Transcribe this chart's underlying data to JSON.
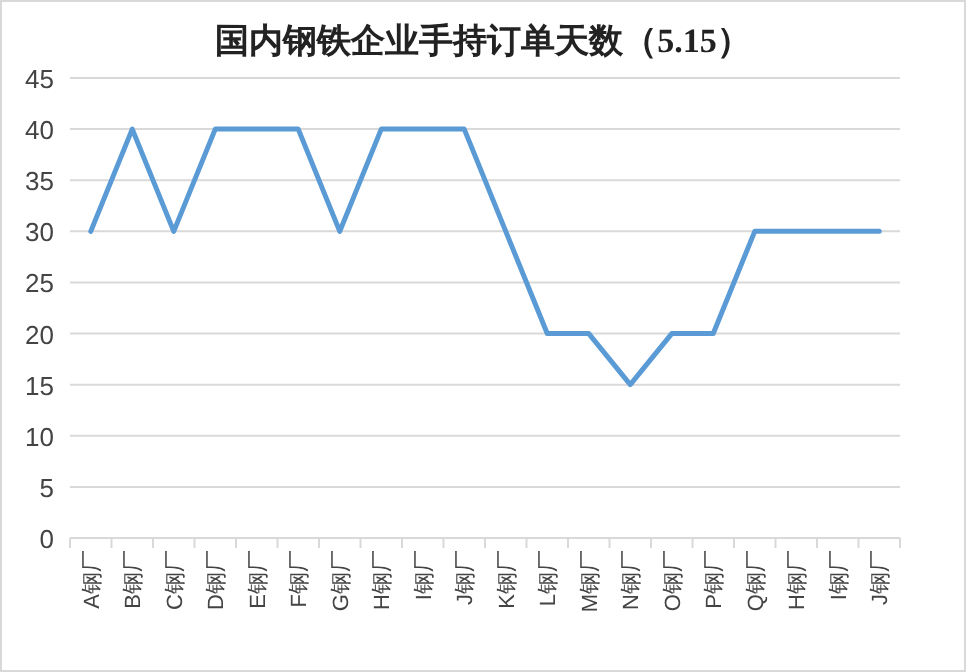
{
  "chart_data": {
    "type": "line",
    "title": "国内钢铁企业手持订单天数（5.15）",
    "categories": [
      "A钢厂",
      "B钢厂",
      "C钢厂",
      "D钢厂",
      "E钢厂",
      "F钢厂",
      "G钢厂",
      "H钢厂",
      "I钢厂",
      "J钢厂",
      "K钢厂",
      "L钢厂",
      "M钢厂",
      "N钢厂",
      "O钢厂",
      "P钢厂",
      "Q钢厂",
      "H钢厂",
      "I钢厂",
      "J钢厂"
    ],
    "series": [
      {
        "color": "#5b9bd5",
        "values": [
          30,
          40,
          30,
          40,
          40,
          40,
          30,
          40,
          40,
          40,
          30,
          20,
          20,
          15,
          20,
          20,
          30,
          30,
          30,
          30
        ]
      }
    ],
    "ylim": [
      0,
      45
    ],
    "yticks": [
      0,
      5,
      10,
      15,
      20,
      25,
      30,
      35,
      40,
      45
    ],
    "grid": "y",
    "marker": "none",
    "line_style": "solid"
  }
}
